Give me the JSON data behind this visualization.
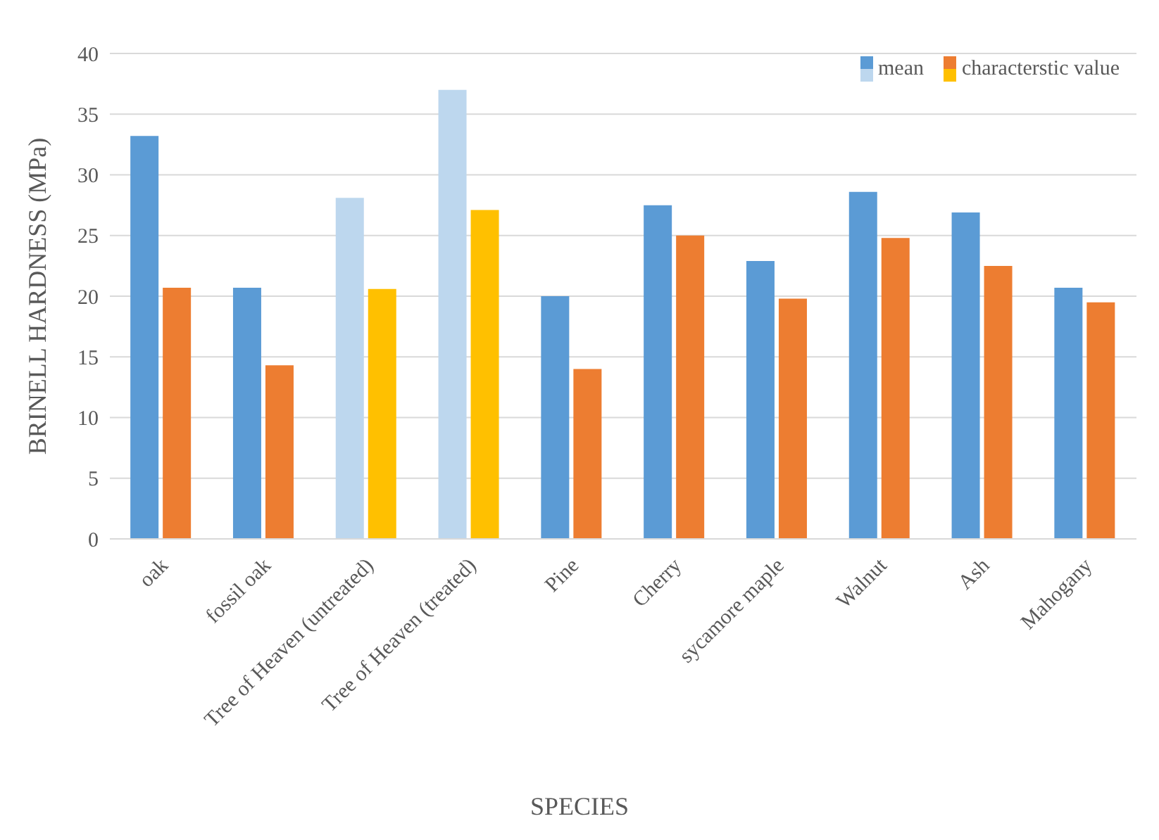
{
  "chart_data": {
    "type": "bar",
    "xlabel": "SPECIES",
    "ylabel": "BRINELL HARDNESS (MPa)",
    "categories": [
      "oak",
      "fossil oak",
      "Tree of Heaven (untreated)",
      "Tree of Heaven (treated)",
      "Pine",
      "Cherry",
      "sycamore maple",
      "Walnut",
      "Ash",
      "Mahogany"
    ],
    "series": [
      {
        "name": "mean",
        "color": "#5b9bd5",
        "colors": [
          "#5b9bd5",
          "#5b9bd5",
          "#bdd7ee",
          "#bdd7ee",
          "#5b9bd5",
          "#5b9bd5",
          "#5b9bd5",
          "#5b9bd5",
          "#5b9bd5",
          "#5b9bd5"
        ],
        "values": [
          33.2,
          20.7,
          28.1,
          37.0,
          20.0,
          27.5,
          22.9,
          28.6,
          26.9,
          20.7
        ]
      },
      {
        "name": "characterstic value",
        "color": "#ed7d31",
        "colors": [
          "#ed7d31",
          "#ed7d31",
          "#ffc000",
          "#ffc000",
          "#ed7d31",
          "#ed7d31",
          "#ed7d31",
          "#ed7d31",
          "#ed7d31",
          "#ed7d31"
        ],
        "values": [
          20.7,
          14.3,
          20.6,
          27.1,
          14.0,
          25.0,
          19.8,
          24.8,
          22.5,
          19.5
        ]
      }
    ],
    "ylim": [
      0,
      40
    ],
    "yticks": [
      0,
      5,
      10,
      15,
      20,
      25,
      30,
      35,
      40
    ],
    "grid": "y",
    "legend": "top right"
  }
}
